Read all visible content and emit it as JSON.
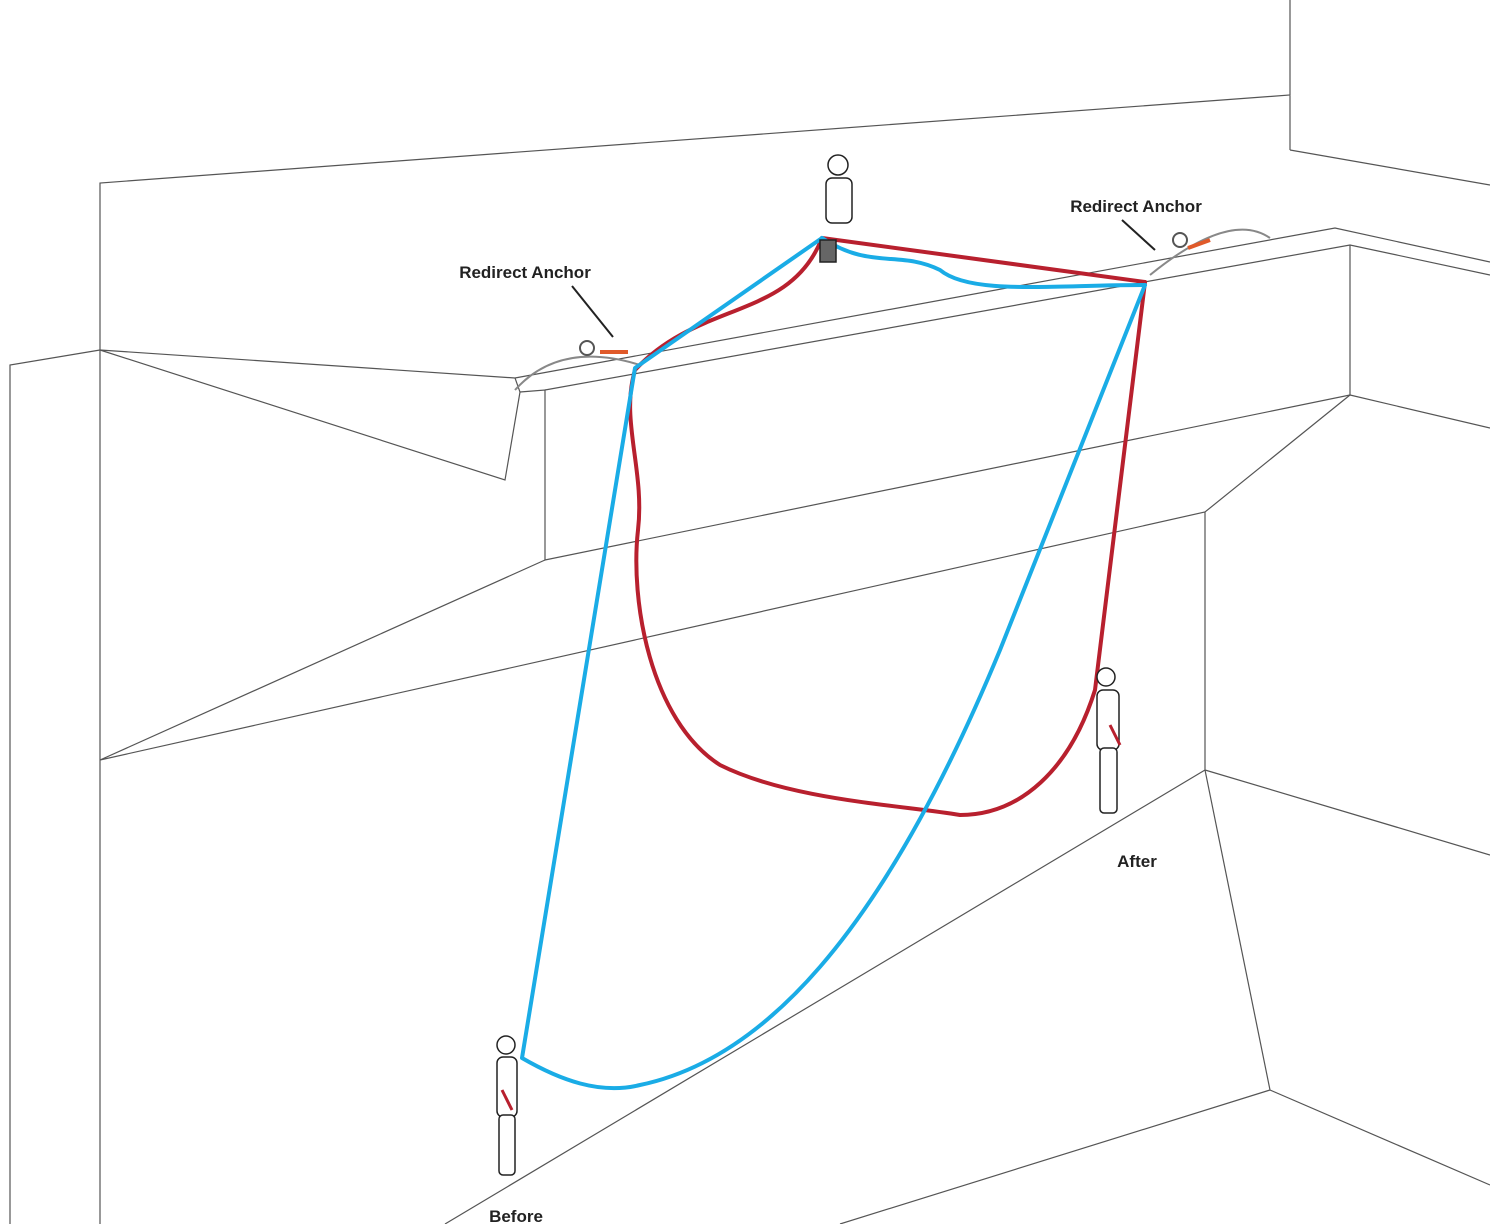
{
  "labels": {
    "anchor_left": "Redirect Anchor",
    "anchor_right": "Redirect Anchor",
    "before": "Before",
    "after": "After"
  }
}
